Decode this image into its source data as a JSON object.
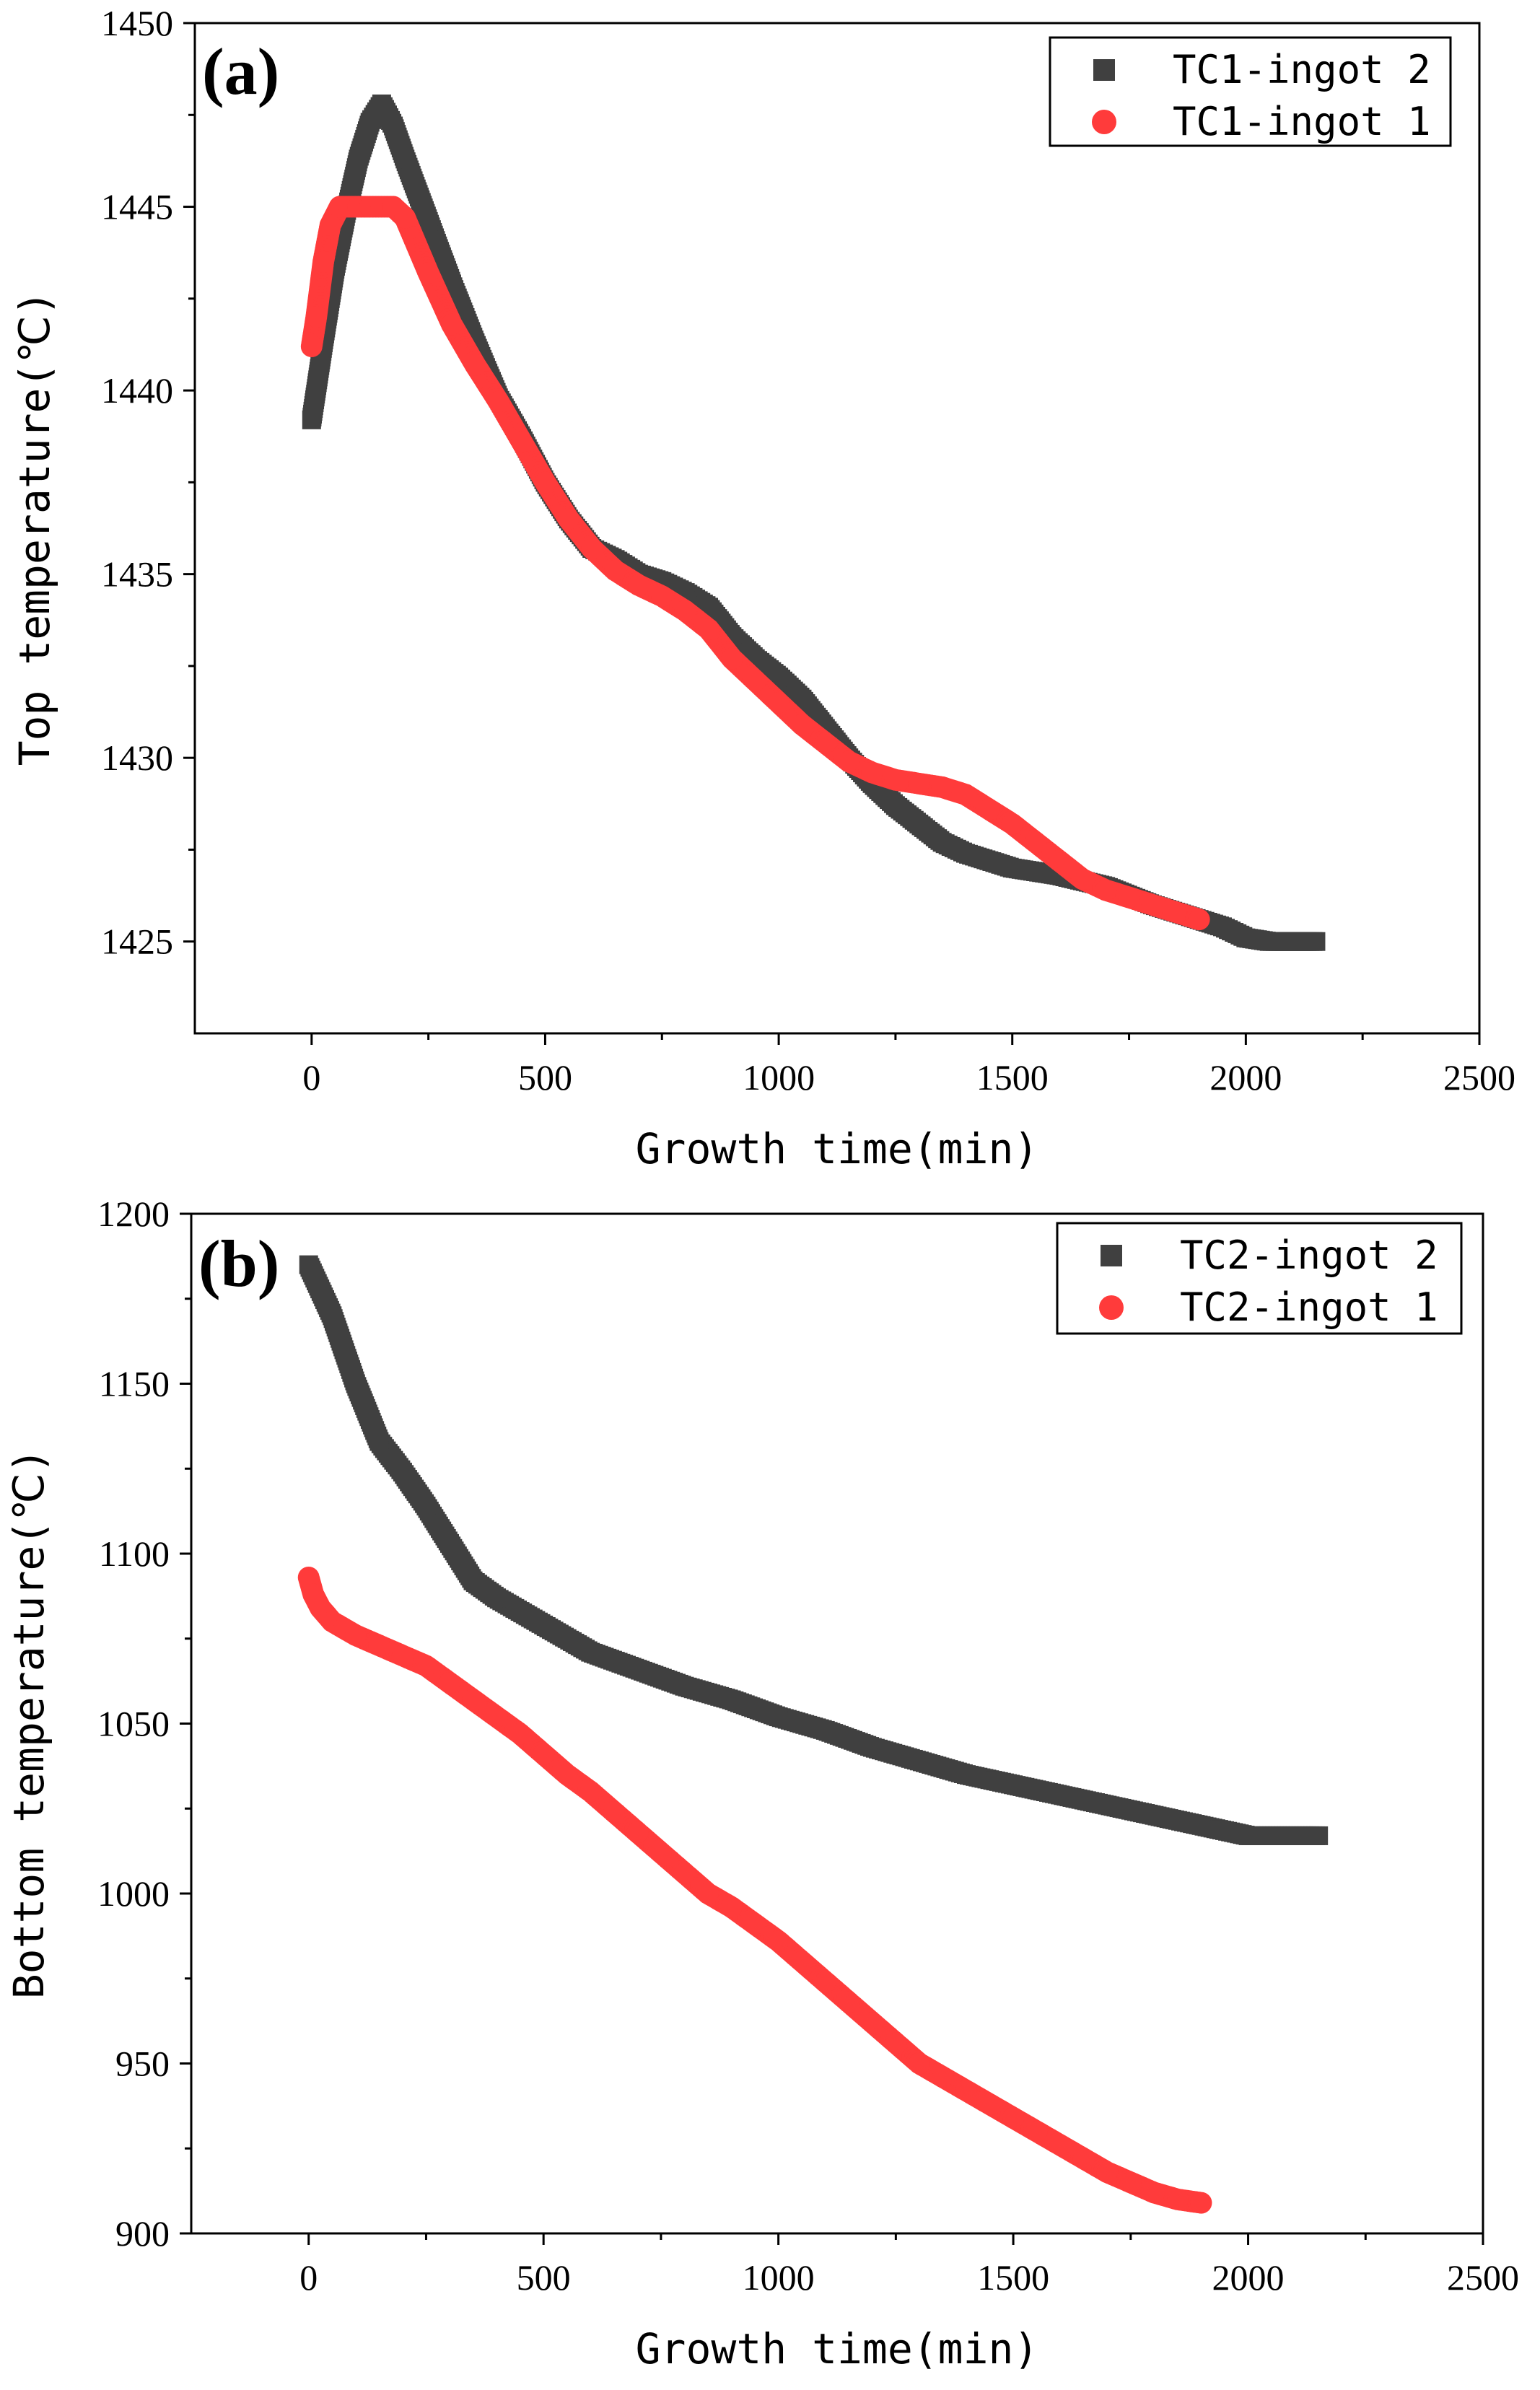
{
  "chart_data": [
    {
      "type": "scatter",
      "panel_label": "(a)",
      "xlabel": "Growth time(min)",
      "ylabel": "Top temperature(℃)",
      "xlim": [
        -250,
        2500
      ],
      "ylim": [
        1422.5,
        1450
      ],
      "xticks": [
        0,
        500,
        1000,
        1500,
        2000,
        2500
      ],
      "yticks": [
        1425,
        1430,
        1435,
        1440,
        1445,
        1450
      ],
      "xtick_labels": [
        "0",
        "500",
        "1000",
        "1500",
        "2000",
        "2500"
      ],
      "ytick_labels": [
        "1425",
        "1430",
        "1435",
        "1440",
        "1445",
        "1450"
      ],
      "legend_position": "top-right",
      "series": [
        {
          "name": "TC1-ingot 2",
          "marker": "square",
          "color": "#404040",
          "x": [
            0,
            25,
            50,
            75,
            100,
            125,
            150,
            175,
            200,
            250,
            300,
            350,
            400,
            450,
            500,
            550,
            600,
            650,
            700,
            750,
            800,
            850,
            900,
            950,
            1000,
            1050,
            1100,
            1150,
            1200,
            1250,
            1300,
            1350,
            1400,
            1450,
            1500,
            1600,
            1700,
            1800,
            1900,
            1950,
            2000,
            2050,
            2100,
            2150
          ],
          "y": [
            1439.2,
            1441.3,
            1443.3,
            1444.9,
            1446.3,
            1447.3,
            1447.8,
            1447.2,
            1446.3,
            1444.6,
            1442.9,
            1441.3,
            1439.8,
            1438.7,
            1437.5,
            1436.5,
            1435.7,
            1435.4,
            1435.0,
            1434.8,
            1434.5,
            1434.1,
            1433.3,
            1432.7,
            1432.2,
            1431.6,
            1430.8,
            1430.0,
            1429.3,
            1428.7,
            1428.2,
            1427.7,
            1427.4,
            1427.2,
            1427.0,
            1426.8,
            1426.5,
            1426.0,
            1425.6,
            1425.4,
            1425.1,
            1425.0,
            1425.0,
            1425.0
          ]
        },
        {
          "name": "TC1-ingot 1",
          "marker": "circle",
          "color": "#ff3b3b",
          "x": [
            0,
            10,
            25,
            40,
            60,
            80,
            100,
            125,
            150,
            175,
            200,
            250,
            300,
            350,
            400,
            450,
            500,
            550,
            600,
            650,
            700,
            750,
            800,
            850,
            900,
            950,
            1000,
            1050,
            1100,
            1150,
            1200,
            1250,
            1300,
            1350,
            1400,
            1450,
            1500,
            1550,
            1600,
            1620,
            1650,
            1700,
            1750,
            1800,
            1850,
            1900
          ],
          "y": [
            1441.2,
            1442.0,
            1443.5,
            1444.5,
            1445.0,
            1445.0,
            1445.0,
            1445.0,
            1445.0,
            1445.0,
            1444.7,
            1443.2,
            1441.8,
            1440.7,
            1439.7,
            1438.6,
            1437.5,
            1436.5,
            1435.7,
            1435.1,
            1434.7,
            1434.4,
            1434.0,
            1433.5,
            1432.7,
            1432.1,
            1431.5,
            1430.9,
            1430.4,
            1429.9,
            1429.6,
            1429.4,
            1429.3,
            1429.2,
            1429.0,
            1428.6,
            1428.2,
            1427.7,
            1427.2,
            1427.0,
            1426.7,
            1426.4,
            1426.2,
            1426.0,
            1425.8,
            1425.6
          ]
        }
      ]
    },
    {
      "type": "scatter",
      "panel_label": "(b)",
      "xlabel": "Growth time(min)",
      "ylabel": "Bottom temperature(℃)",
      "xlim": [
        -250,
        2500
      ],
      "ylim": [
        900,
        1200
      ],
      "xticks": [
        0,
        500,
        1000,
        1500,
        2000,
        2500
      ],
      "yticks": [
        900,
        950,
        1000,
        1050,
        1100,
        1150,
        1200
      ],
      "xtick_labels": [
        "0",
        "500",
        "1000",
        "1500",
        "2000",
        "2500"
      ],
      "ytick_labels": [
        "900",
        "950",
        "1000",
        "1050",
        "1100",
        "1150",
        "1200"
      ],
      "legend_position": "top-right",
      "series": [
        {
          "name": "TC2-ingot 2",
          "marker": "square",
          "color": "#404040",
          "x": [
            0,
            50,
            100,
            150,
            200,
            250,
            300,
            350,
            400,
            500,
            600,
            700,
            800,
            900,
            1000,
            1100,
            1200,
            1300,
            1400,
            1500,
            1600,
            1700,
            1800,
            1900,
            2000,
            2050,
            2100,
            2150
          ],
          "y": [
            1185,
            1170,
            1150,
            1133,
            1124,
            1114,
            1103,
            1092,
            1087,
            1079,
            1071,
            1066,
            1061,
            1057,
            1052,
            1048,
            1043,
            1039,
            1035,
            1032,
            1029,
            1026,
            1023,
            1020,
            1017,
            1017,
            1017,
            1017
          ]
        },
        {
          "name": "TC2-ingot 1",
          "marker": "circle",
          "color": "#ff3b3b",
          "x": [
            0,
            10,
            25,
            50,
            75,
            100,
            150,
            200,
            250,
            300,
            350,
            400,
            450,
            500,
            550,
            600,
            650,
            700,
            750,
            800,
            850,
            900,
            950,
            1000,
            1050,
            1100,
            1150,
            1200,
            1250,
            1300,
            1350,
            1400,
            1450,
            1500,
            1550,
            1600,
            1650,
            1700,
            1750,
            1800,
            1850,
            1900
          ],
          "y": [
            1093,
            1088,
            1084,
            1080,
            1078,
            1076,
            1073,
            1070,
            1067,
            1062,
            1057,
            1052,
            1047,
            1041,
            1035,
            1030,
            1024,
            1018,
            1012,
            1006,
            1000,
            996,
            991,
            986,
            980,
            974,
            968,
            962,
            956,
            950,
            946,
            942,
            938,
            934,
            930,
            926,
            922,
            918,
            915,
            912,
            910,
            909
          ]
        }
      ]
    }
  ]
}
